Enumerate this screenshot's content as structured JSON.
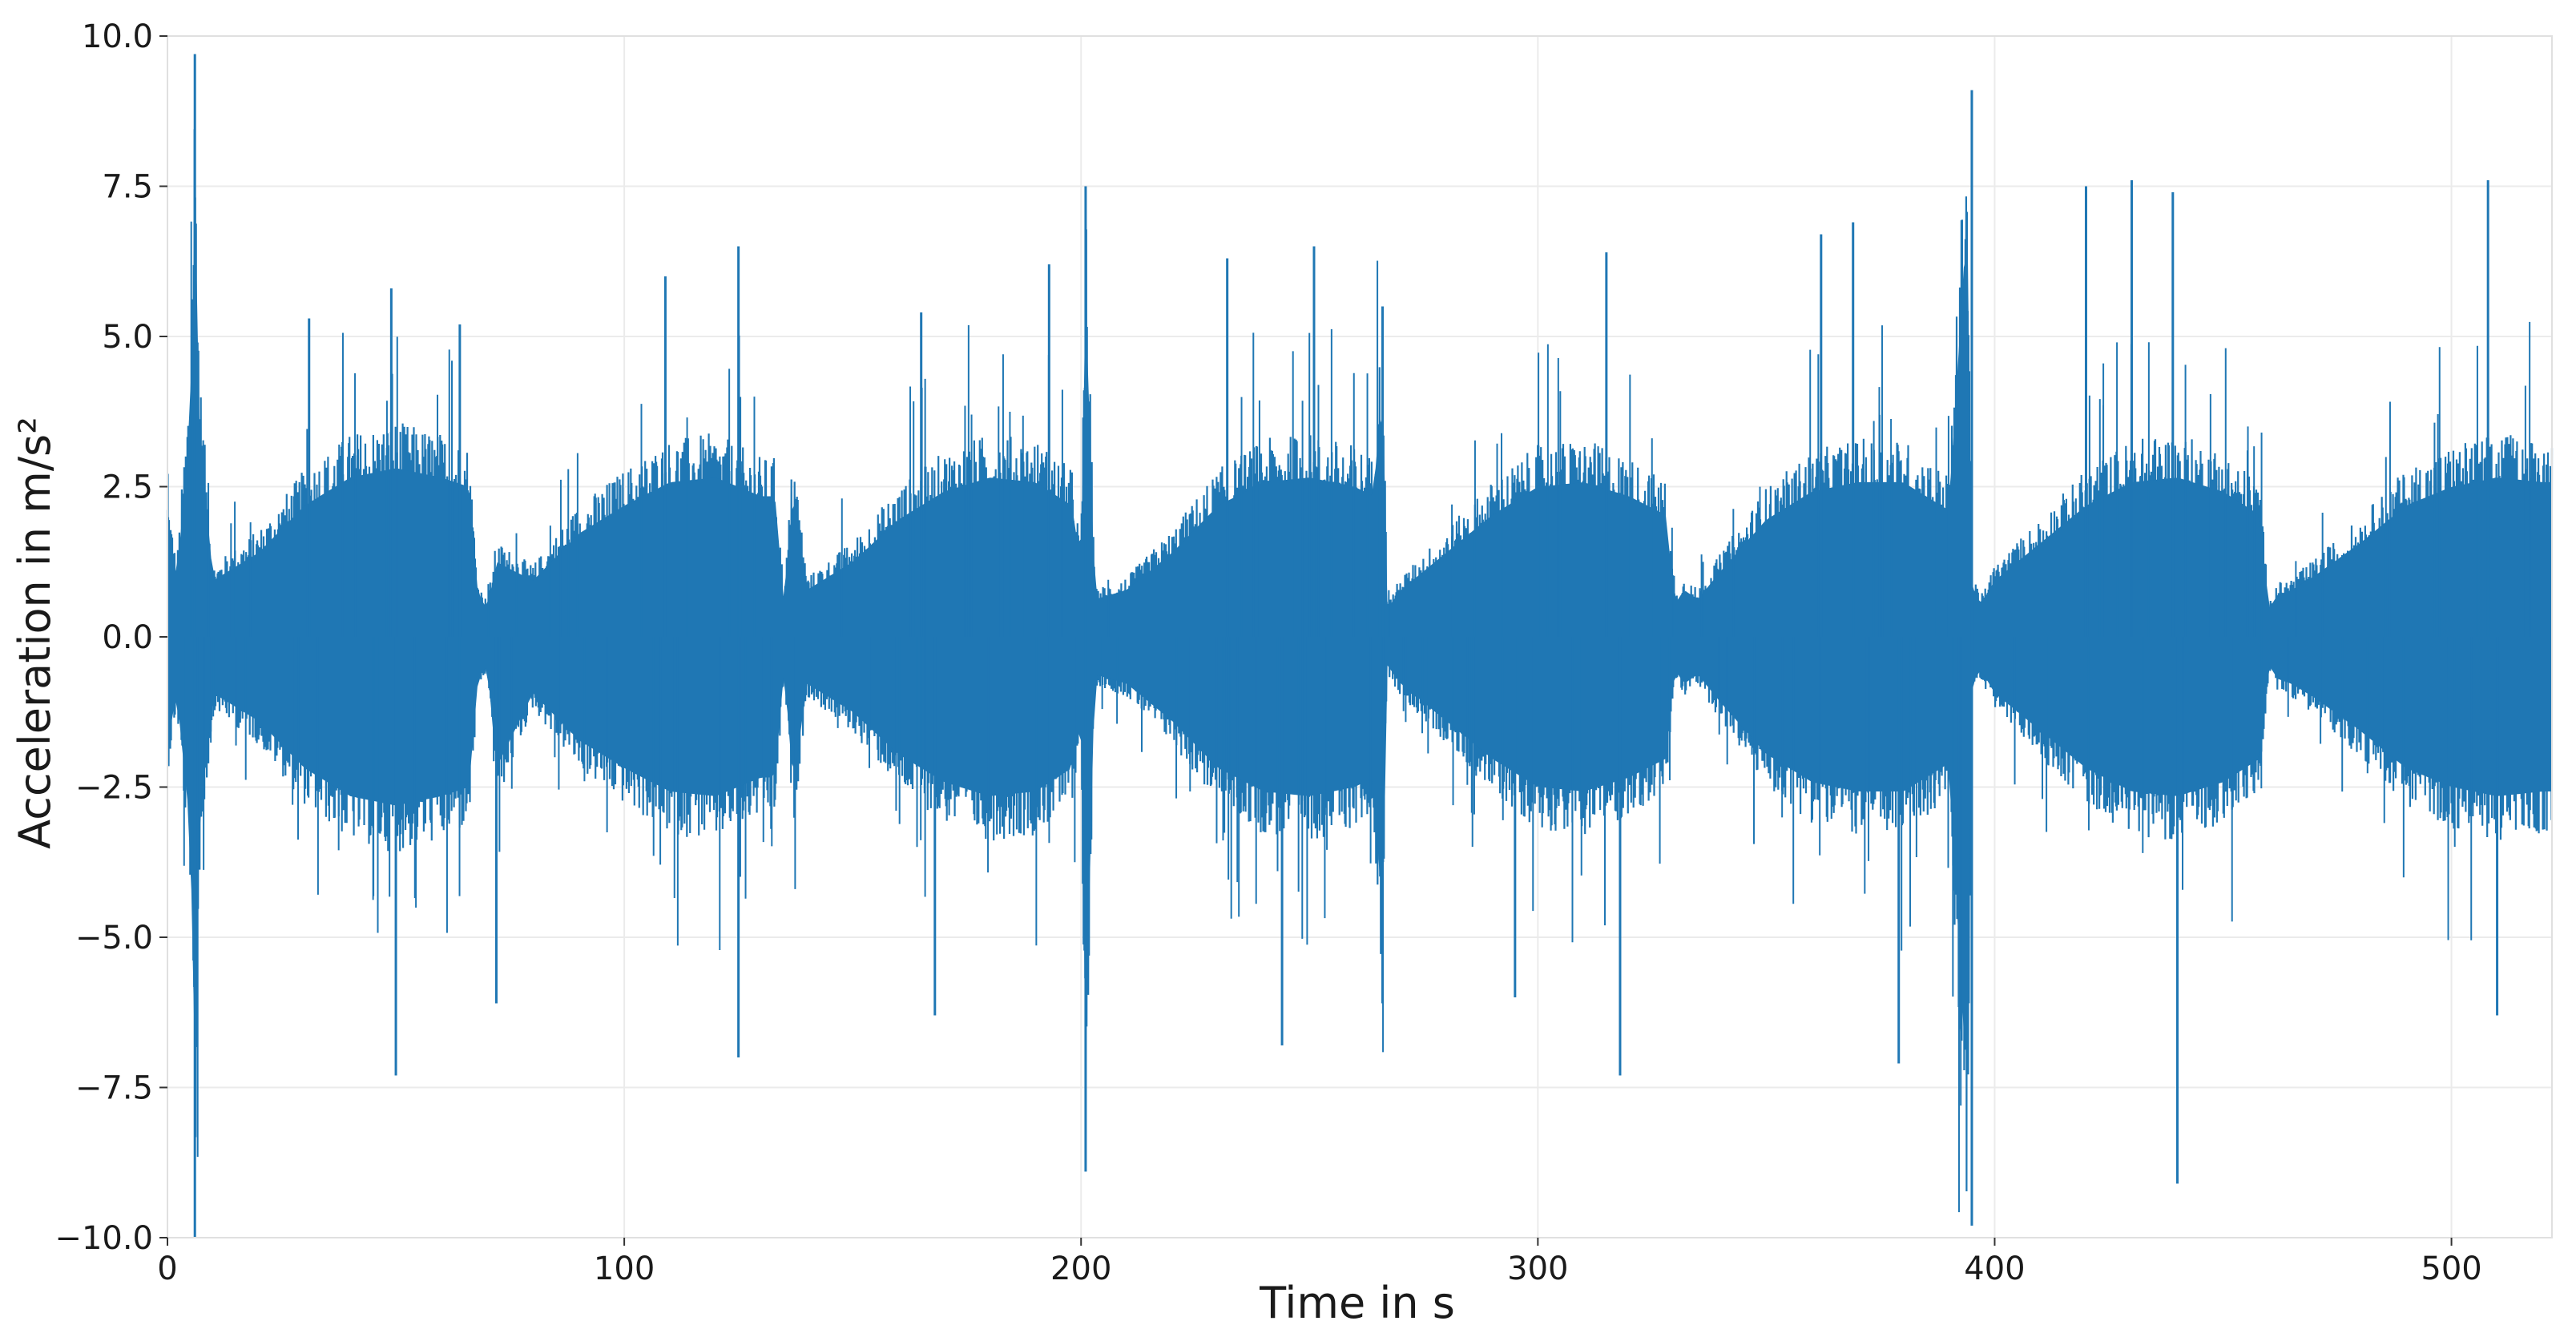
{
  "chart_data": {
    "type": "line",
    "title": "",
    "xlabel": "Time in s",
    "ylabel": "Acceleration in m/s²",
    "xlim": [
      0,
      522
    ],
    "ylim": [
      -10.0,
      10.0
    ],
    "x_ticks": [
      0,
      100,
      200,
      300,
      400,
      500
    ],
    "x_tick_labels": [
      "0",
      "100",
      "200",
      "300",
      "400",
      "500"
    ],
    "y_ticks": [
      10.0,
      7.5,
      5.0,
      2.5,
      0.0,
      -2.5,
      -5.0,
      -7.5,
      -10.0
    ],
    "y_tick_labels": [
      "10.0",
      "7.5",
      "5.0",
      "2.5",
      "0.0",
      "−2.5",
      "−5.0",
      "−7.5",
      "−10.0"
    ],
    "grid": true,
    "legend": "none",
    "series": [
      {
        "color": "#1f77b4",
        "description_points": "approximate envelope of a dense vibration signal; upper and lower bounds per time",
        "x": [
          0,
          2,
          5,
          6,
          7,
          10,
          20,
          30,
          40,
          50,
          60,
          66,
          68,
          70,
          72,
          80,
          90,
          100,
          110,
          120,
          130,
          133,
          135,
          137,
          140,
          150,
          160,
          170,
          180,
          190,
          198,
          200,
          201,
          203,
          210,
          220,
          230,
          240,
          250,
          260,
          264,
          266,
          267,
          270,
          280,
          290,
          300,
          310,
          320,
          328,
          330,
          332,
          335,
          340,
          350,
          360,
          370,
          380,
          390,
          394,
          395,
          397,
          400,
          410,
          420,
          430,
          440,
          450,
          458,
          460,
          462,
          465,
          470,
          480,
          490,
          500,
          510,
          520
        ],
        "upper": [
          2.5,
          1.2,
          4.6,
          9.7,
          4.5,
          1.2,
          1.8,
          2.8,
          3.4,
          3.6,
          3.4,
          3.2,
          0.9,
          0.6,
          1.6,
          1.2,
          2.2,
          2.8,
          3.3,
          3.4,
          3.0,
          3.0,
          0.7,
          3.2,
          1.0,
          1.6,
          2.5,
          3.1,
          3.4,
          3.3,
          2.8,
          1.5,
          7.5,
          0.8,
          1.0,
          1.8,
          2.8,
          3.3,
          3.4,
          3.2,
          3.0,
          5.5,
          0.6,
          1.0,
          1.8,
          2.6,
          3.2,
          3.3,
          3.0,
          2.6,
          0.7,
          1.0,
          0.8,
          1.4,
          2.5,
          3.1,
          3.3,
          3.3,
          2.7,
          9.1,
          1.0,
          0.7,
          1.2,
          2.0,
          2.8,
          3.3,
          3.4,
          3.1,
          2.6,
          0.6,
          0.9,
          1.0,
          1.3,
          2.0,
          2.8,
          3.2,
          3.4,
          3.3
        ],
        "lower": [
          -2.3,
          -1.2,
          -4.1,
          -10.0,
          -4.0,
          -1.2,
          -1.8,
          -2.8,
          -3.4,
          -3.6,
          -3.4,
          -3.2,
          -0.9,
          -0.6,
          -2.8,
          -1.2,
          -2.2,
          -2.8,
          -3.3,
          -3.4,
          -3.0,
          -3.0,
          -0.7,
          -3.2,
          -1.0,
          -1.6,
          -2.5,
          -3.1,
          -3.4,
          -3.3,
          -2.8,
          -1.5,
          -8.9,
          -0.8,
          -1.0,
          -1.8,
          -2.8,
          -3.3,
          -3.4,
          -3.2,
          -3.0,
          -6.1,
          -0.6,
          -1.0,
          -1.8,
          -2.6,
          -3.2,
          -3.3,
          -3.0,
          -2.6,
          -0.7,
          -1.0,
          -0.8,
          -1.4,
          -2.5,
          -3.1,
          -3.3,
          -3.3,
          -2.7,
          -9.8,
          -1.0,
          -0.7,
          -1.2,
          -2.0,
          -2.8,
          -3.3,
          -3.4,
          -3.1,
          -2.6,
          -0.6,
          -0.9,
          -1.0,
          -1.3,
          -2.0,
          -2.8,
          -3.2,
          -3.4,
          -3.3
        ]
      }
    ],
    "annotated_peaks": [
      {
        "x": 6,
        "y": 9.7
      },
      {
        "x": 6,
        "y": -10.0
      },
      {
        "x": 31,
        "y": 5.3
      },
      {
        "x": 49,
        "y": 5.8
      },
      {
        "x": 50,
        "y": -7.3
      },
      {
        "x": 64,
        "y": 5.2
      },
      {
        "x": 72,
        "y": -6.1
      },
      {
        "x": 109,
        "y": 6.0
      },
      {
        "x": 125,
        "y": 6.5
      },
      {
        "x": 125,
        "y": -7.0
      },
      {
        "x": 165,
        "y": 5.4
      },
      {
        "x": 168,
        "y": -6.3
      },
      {
        "x": 193,
        "y": 6.2
      },
      {
        "x": 201,
        "y": 7.5
      },
      {
        "x": 201,
        "y": -8.9
      },
      {
        "x": 232,
        "y": 6.3
      },
      {
        "x": 244,
        "y": -6.8
      },
      {
        "x": 251,
        "y": 6.5
      },
      {
        "x": 266,
        "y": 5.5
      },
      {
        "x": 266,
        "y": -6.1
      },
      {
        "x": 295,
        "y": -6.0
      },
      {
        "x": 315,
        "y": 6.4
      },
      {
        "x": 318,
        "y": -7.3
      },
      {
        "x": 362,
        "y": 6.7
      },
      {
        "x": 369,
        "y": 6.9
      },
      {
        "x": 379,
        "y": -7.1
      },
      {
        "x": 395,
        "y": 9.1
      },
      {
        "x": 395,
        "y": -9.8
      },
      {
        "x": 420,
        "y": 7.5
      },
      {
        "x": 430,
        "y": 7.6
      },
      {
        "x": 439,
        "y": 7.4
      },
      {
        "x": 440,
        "y": -9.1
      },
      {
        "x": 508,
        "y": 7.6
      },
      {
        "x": 510,
        "y": -6.3
      }
    ]
  }
}
